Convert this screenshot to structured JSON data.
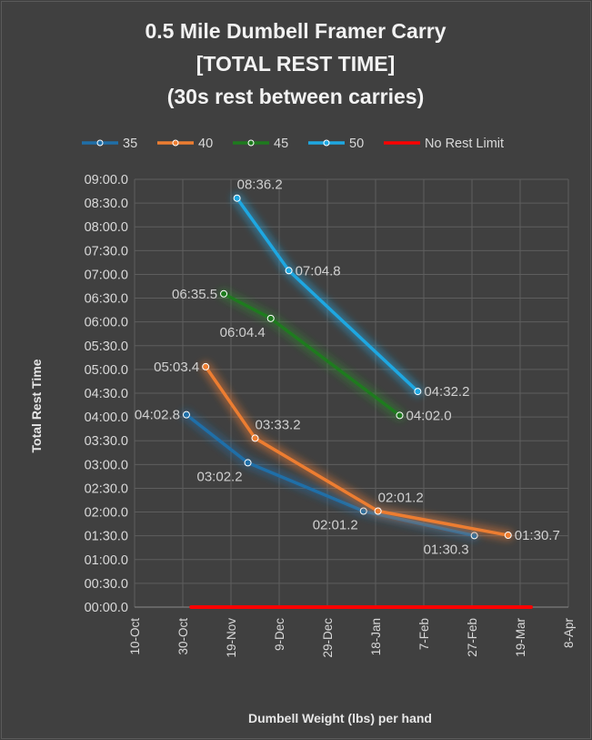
{
  "chart_data": {
    "type": "line",
    "title_lines": [
      "0.5 Mile Dumbell Framer Carry",
      "[TOTAL REST TIME]",
      "(30s rest between carries)"
    ],
    "xlabel": "Dumbell Weight (lbs) per hand",
    "ylabel": "Total Rest Time",
    "x_axis": {
      "type": "date",
      "min_days": 0,
      "max_days": 180,
      "tick_step_days": 20,
      "tick_labels": [
        "10-Oct",
        "30-Oct",
        "19-Nov",
        "9-Dec",
        "29-Dec",
        "18-Jan",
        "7-Feb",
        "27-Feb",
        "19-Mar",
        "8-Apr"
      ]
    },
    "y_axis": {
      "min_seconds": 0,
      "max_seconds": 540,
      "tick_step_seconds": 30,
      "tick_labels": [
        "00:00.0",
        "00:30.0",
        "01:00.0",
        "01:30.0",
        "02:00.0",
        "02:30.0",
        "03:00.0",
        "03:30.0",
        "04:00.0",
        "04:30.0",
        "05:00.0",
        "05:30.0",
        "06:00.0",
        "06:30.0",
        "07:00.0",
        "07:30.0",
        "08:00.0",
        "08:30.0",
        "09:00.0"
      ],
      "gridlines": true
    },
    "legend_position": "top",
    "series": [
      {
        "name": "35",
        "color": "#1f6fa8",
        "glow": "#1f6fa8",
        "points": [
          {
            "x_days": 21.5,
            "y_seconds": 242.8,
            "label": "04:02.8",
            "label_pos": "left"
          },
          {
            "x_days": 47,
            "y_seconds": 182.2,
            "label": "03:02.2",
            "label_pos": "below-left"
          },
          {
            "x_days": 95,
            "y_seconds": 121.2,
            "label": "02:01.2",
            "label_pos": "below-left"
          },
          {
            "x_days": 141,
            "y_seconds": 90.3,
            "label": "01:30.3",
            "label_pos": "below-left"
          }
        ]
      },
      {
        "name": "40",
        "color": "#ed7d31",
        "glow": "#ed7d31",
        "points": [
          {
            "x_days": 29.5,
            "y_seconds": 303.4,
            "label": "05:03.4",
            "label_pos": "left"
          },
          {
            "x_days": 50,
            "y_seconds": 213.2,
            "label": "03:33.2",
            "label_pos": "above-right"
          },
          {
            "x_days": 101,
            "y_seconds": 121.2,
            "label": "02:01.2",
            "label_pos": "above-right"
          },
          {
            "x_days": 155,
            "y_seconds": 90.7,
            "label": "01:30.7",
            "label_pos": "right"
          }
        ]
      },
      {
        "name": "45",
        "color": "#1e7b1e",
        "glow": "#2e8b2e",
        "points": [
          {
            "x_days": 37,
            "y_seconds": 395.5,
            "label": "06:35.5",
            "label_pos": "left"
          },
          {
            "x_days": 56.5,
            "y_seconds": 364.4,
            "label": "06:04.4",
            "label_pos": "below-left"
          },
          {
            "x_days": 110,
            "y_seconds": 242.0,
            "label": "04:02.0",
            "label_pos": "right"
          }
        ]
      },
      {
        "name": "50",
        "color": "#1ea7e1",
        "glow": "#1ea7e1",
        "points": [
          {
            "x_days": 42.5,
            "y_seconds": 516.2,
            "label": "08:36.2",
            "label_pos": "above-right"
          },
          {
            "x_days": 64,
            "y_seconds": 424.8,
            "label": "07:04.8",
            "label_pos": "right"
          },
          {
            "x_days": 117.5,
            "y_seconds": 272.2,
            "label": "04:32.2",
            "label_pos": "right"
          }
        ]
      },
      {
        "name": "No Rest Limit",
        "color": "#ff0000",
        "glow": "#e0007a",
        "is_limit": true,
        "points": [
          {
            "x_days": 23.5,
            "y_seconds": 0
          },
          {
            "x_days": 164.5,
            "y_seconds": 0
          }
        ]
      }
    ]
  }
}
